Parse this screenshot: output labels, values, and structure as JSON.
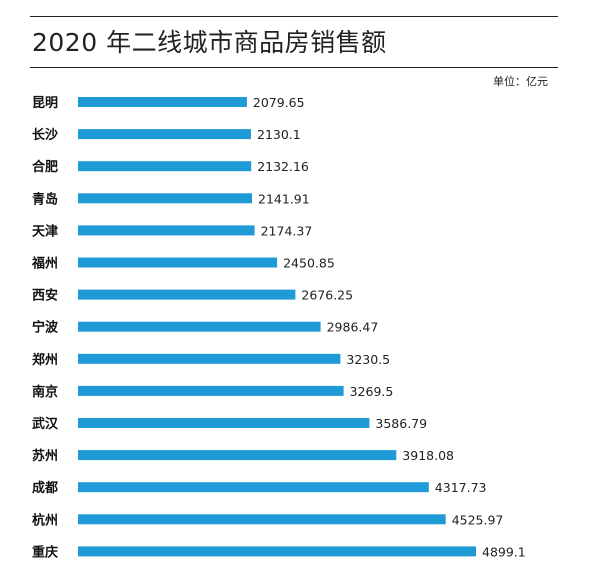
{
  "chart_data": {
    "type": "bar",
    "orientation": "horizontal",
    "title": "2020 年二线城市商品房销售额",
    "unit_label": "单位：亿元",
    "categories": [
      "昆明",
      "长沙",
      "合肥",
      "青岛",
      "天津",
      "福州",
      "西安",
      "宁波",
      "郑州",
      "南京",
      "武汉",
      "苏州",
      "成都",
      "杭州",
      "重庆"
    ],
    "values": [
      2079.65,
      2130.1,
      2132.16,
      2141.91,
      2174.37,
      2450.85,
      2676.25,
      2986.47,
      3230.5,
      3269.5,
      3586.79,
      3918.08,
      4317.73,
      4525.97,
      4899.1
    ],
    "value_labels": [
      "2079.65",
      "2130.1",
      "2132.16",
      "2141.91",
      "2174.37",
      "2450.85",
      "2676.25",
      "2986.47",
      "3230.5",
      "3269.5",
      "3586.79",
      "3918.08",
      "4317.73",
      "4525.97",
      "4899.1"
    ],
    "xlabel": "",
    "ylabel": "",
    "xlim": [
      0,
      4899.1
    ],
    "grid": false,
    "legend": "none",
    "bar_color": "#1e9bd7"
  }
}
